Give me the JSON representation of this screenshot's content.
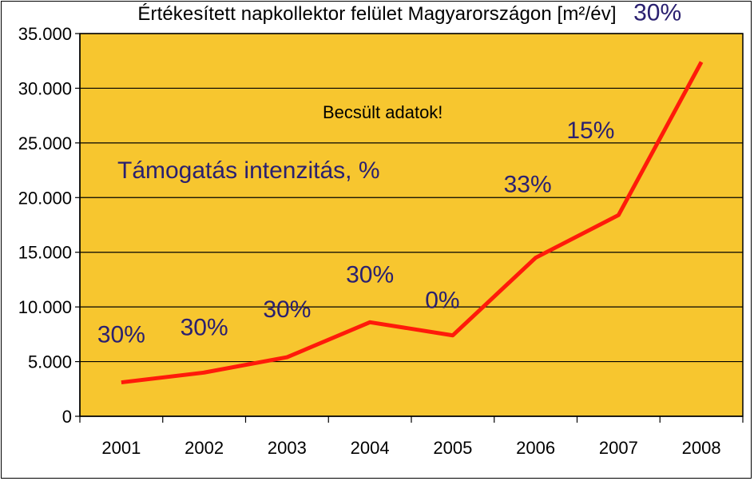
{
  "chart_data": {
    "type": "line",
    "title": "Értékesített napkollektor felület Magyarországon [m²/év]",
    "categories": [
      "2001",
      "2002",
      "2003",
      "2004",
      "2005",
      "2006",
      "2007",
      "2008"
    ],
    "series": [
      {
        "values": [
          3100,
          4000,
          5400,
          8600,
          7400,
          14500,
          18400,
          32400
        ]
      }
    ],
    "y_ticks": [
      0,
      5000,
      10000,
      15000,
      20000,
      25000,
      30000,
      35000
    ],
    "y_tick_labels": [
      "0",
      "5.000",
      "10.000",
      "15.000",
      "20.000",
      "25.000",
      "30.000",
      "35.000"
    ],
    "ylim": [
      0,
      35000
    ],
    "grid": true,
    "point_labels": [
      "30%",
      "30%",
      "30%",
      "30%",
      "0%",
      "33%",
      "15%",
      "30%"
    ],
    "annotations": {
      "note": "Becsült adatok!",
      "subtitle": "Támogatás intenzitás, %"
    },
    "colors": {
      "plot_background": "#f7c62f",
      "line": "#ff1a0a",
      "label_text": "#2a2070",
      "grid": "#000000"
    }
  }
}
